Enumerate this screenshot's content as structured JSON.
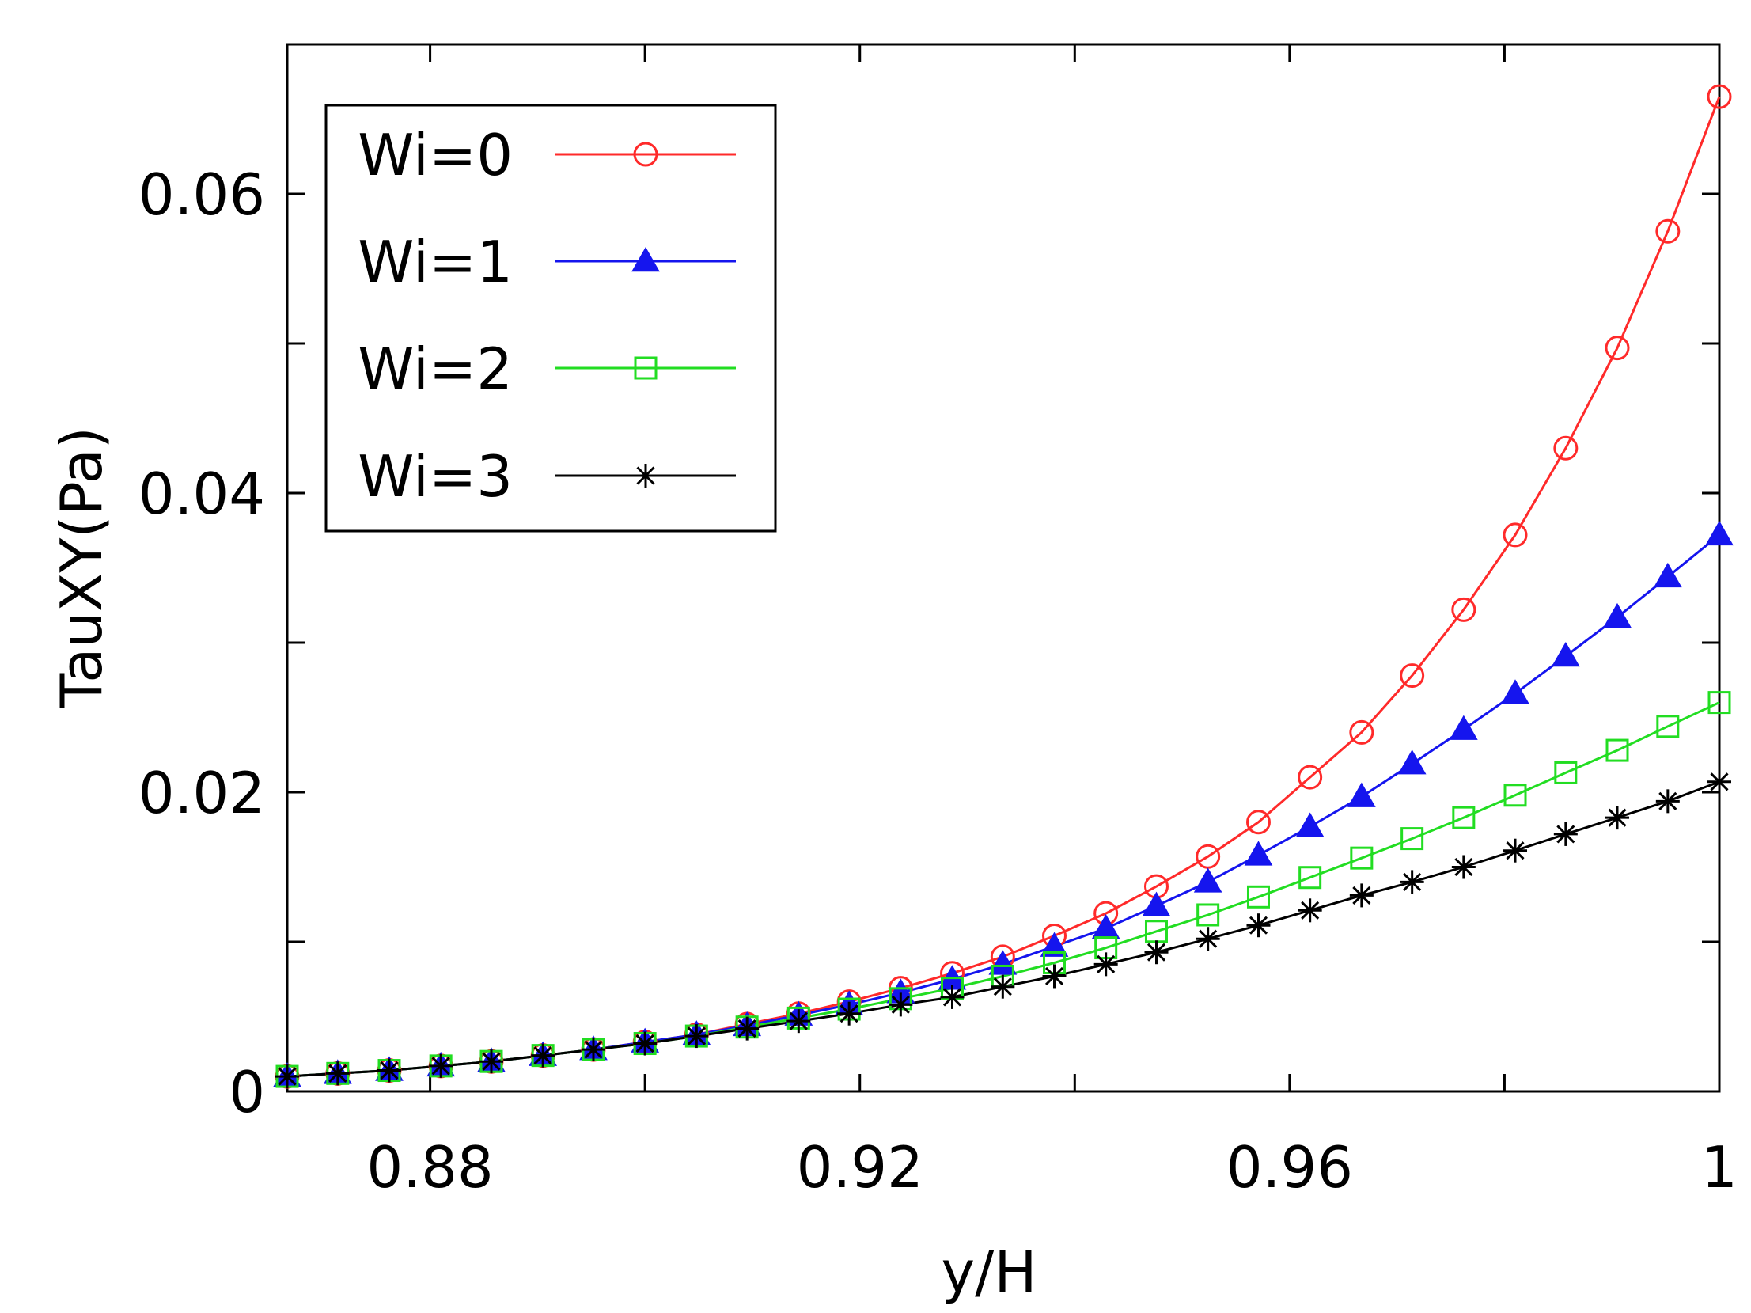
{
  "chart_data": {
    "type": "line",
    "title": "",
    "xlabel": "y/H",
    "ylabel": "TauXY(Pa)",
    "xlim": [
      0.8667,
      1.0
    ],
    "ylim": [
      0,
      0.07
    ],
    "xticks": [
      0.88,
      0.92,
      0.96,
      1
    ],
    "xtick_labels": [
      "0.88",
      "0.92",
      "0.96",
      "1"
    ],
    "xminor": [
      0.86,
      0.9,
      0.94,
      0.98
    ],
    "yticks": [
      0,
      0.02,
      0.04,
      0.06
    ],
    "ytick_labels": [
      "0",
      "0.02",
      "0.04",
      "0.06"
    ],
    "yminor": [
      0.01,
      0.03,
      0.05
    ],
    "grid": false,
    "legend_position": "top-left",
    "x": [
      0.8667,
      0.8714,
      0.8762,
      0.881,
      0.8857,
      0.8905,
      0.8952,
      0.9,
      0.9048,
      0.9095,
      0.9143,
      0.919,
      0.9238,
      0.9286,
      0.9333,
      0.9381,
      0.9429,
      0.9476,
      0.9524,
      0.9571,
      0.9619,
      0.9667,
      0.9714,
      0.9762,
      0.981,
      0.9857,
      0.9905,
      0.9952,
      1.0
    ],
    "series": [
      {
        "name": "Wi=0",
        "color": "#ff2a2a",
        "marker": "open-circle",
        "values": [
          0.001,
          0.0012,
          0.0014,
          0.0017,
          0.002,
          0.0024,
          0.0028,
          0.0033,
          0.0038,
          0.0045,
          0.0052,
          0.006,
          0.0069,
          0.0079,
          0.009,
          0.0104,
          0.0119,
          0.0137,
          0.0157,
          0.018,
          0.021,
          0.024,
          0.0278,
          0.0322,
          0.0372,
          0.043,
          0.0497,
          0.0575,
          0.0665
        ]
      },
      {
        "name": "Wi=1",
        "color": "#1515ee",
        "marker": "filled-triangle",
        "values": [
          0.001,
          0.0012,
          0.0014,
          0.0017,
          0.002,
          0.0024,
          0.0028,
          0.0033,
          0.0038,
          0.0044,
          0.0051,
          0.0058,
          0.0066,
          0.0075,
          0.0085,
          0.0097,
          0.0109,
          0.0124,
          0.014,
          0.0158,
          0.0177,
          0.0197,
          0.0219,
          0.0242,
          0.0266,
          0.0291,
          0.0317,
          0.0344,
          0.0372
        ]
      },
      {
        "name": "Wi=2",
        "color": "#22dd22",
        "marker": "open-square",
        "values": [
          0.001,
          0.0012,
          0.0014,
          0.0017,
          0.002,
          0.0024,
          0.0028,
          0.0032,
          0.0037,
          0.0043,
          0.0049,
          0.0055,
          0.0062,
          0.0069,
          0.0077,
          0.0086,
          0.0096,
          0.0107,
          0.0118,
          0.013,
          0.0143,
          0.0156,
          0.0169,
          0.0183,
          0.0198,
          0.0213,
          0.0228,
          0.0244,
          0.026
        ]
      },
      {
        "name": "Wi=3",
        "color": "#000000",
        "marker": "asterisk",
        "values": [
          0.001,
          0.0012,
          0.0014,
          0.0017,
          0.002,
          0.0024,
          0.0028,
          0.0032,
          0.0037,
          0.0042,
          0.0047,
          0.0052,
          0.0058,
          0.0063,
          0.007,
          0.0077,
          0.0085,
          0.0093,
          0.0102,
          0.0111,
          0.0121,
          0.0131,
          0.014,
          0.015,
          0.0161,
          0.0172,
          0.0183,
          0.0194,
          0.0207
        ]
      }
    ]
  }
}
